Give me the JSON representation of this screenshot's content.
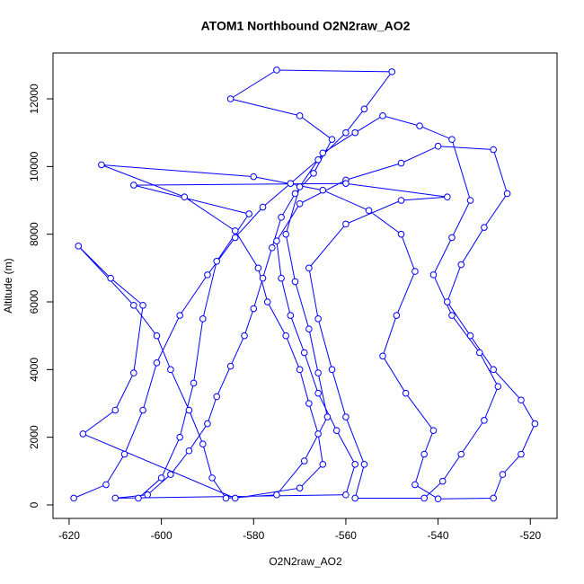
{
  "chart_data": {
    "type": "line",
    "title": "ATOM1 Northbound O2N2raw_AO2",
    "x_label": "O2N2raw_AO2",
    "y_label": "Altitude (m)",
    "color": "#0000ff",
    "marker": "circle",
    "xlim": [
      -623.5,
      -514.2
    ],
    "ylim": [
      -398,
      13354
    ],
    "xticks": [
      -620,
      -600,
      -580,
      -560,
      -540,
      -520
    ],
    "yticks": [
      0,
      2000,
      4000,
      6000,
      8000,
      10000,
      12000
    ],
    "x": [
      -619,
      -612,
      -608,
      -604,
      -601,
      -596,
      -590,
      -584,
      -578,
      -572,
      -566,
      -560,
      -556,
      -550,
      -575,
      -585,
      -570,
      -563,
      -567,
      -571,
      -574,
      -576,
      -578,
      -580,
      -582,
      -585,
      -588,
      -590,
      -594,
      -598,
      -603,
      -610,
      -560,
      -558,
      -562,
      -566,
      -569,
      -572,
      -574,
      -575,
      -570,
      -560,
      -548,
      -540,
      -528,
      -525,
      -530,
      -535,
      -538,
      -533,
      -528,
      -522,
      -519,
      -522,
      -526,
      -528,
      -540,
      -545,
      -543,
      -541,
      -547,
      -552,
      -549,
      -545,
      -548,
      -555,
      -565,
      -580,
      -613,
      -595,
      -584,
      -579,
      -577,
      -573,
      -570,
      -568,
      -566,
      -565,
      -570,
      -584,
      -617,
      -610,
      -606,
      -604,
      -611,
      -618,
      -606,
      -601,
      -598,
      -594,
      -591,
      -589,
      -586,
      -575,
      -569,
      -564,
      -566,
      -568,
      -571,
      -573,
      -570,
      -565,
      -558,
      -552,
      -544,
      -537,
      -533,
      -537,
      -541,
      -537,
      -531,
      -527,
      -530,
      -535,
      -539,
      -543,
      -558,
      -556,
      -560,
      -563,
      -566,
      -568,
      -560,
      -548,
      -538,
      -560,
      -606,
      -581,
      -588,
      -591,
      -593,
      -596,
      -600,
      -605
    ],
    "values": [
      200,
      600,
      1500,
      2800,
      4200,
      5600,
      6800,
      7900,
      8800,
      9500,
      10200,
      11000,
      11700,
      12800,
      12850,
      12000,
      11500,
      10800,
      9800,
      9200,
      8500,
      7600,
      6700,
      5800,
      5000,
      4100,
      3200,
      2400,
      1600,
      900,
      300,
      200,
      300,
      1200,
      2200,
      3300,
      4500,
      5600,
      6700,
      7800,
      8900,
      9600,
      10100,
      10600,
      10500,
      9200,
      8200,
      7100,
      6000,
      5000,
      4000,
      3100,
      2400,
      1500,
      900,
      200,
      180,
      600,
      1500,
      2200,
      3300,
      4400,
      5600,
      6900,
      8000,
      8700,
      9300,
      9700,
      10050,
      9100,
      8100,
      7000,
      6000,
      5000,
      4000,
      3000,
      2100,
      1200,
      500,
      200,
      2100,
      2800,
      3900,
      5900,
      6700,
      7650,
      5900,
      5000,
      4000,
      2800,
      1800,
      800,
      200,
      300,
      1300,
      2600,
      3900,
      5200,
      6600,
      8000,
      9400,
      10400,
      11000,
      11500,
      11200,
      10800,
      9000,
      7900,
      6800,
      5600,
      4500,
      3500,
      2500,
      1500,
      700,
      200,
      200,
      1200,
      2600,
      4000,
      5500,
      7000,
      8300,
      9000,
      9100,
      9500,
      9450,
      8600,
      7200,
      5500,
      3600,
      2000,
      800,
      200
    ]
  }
}
